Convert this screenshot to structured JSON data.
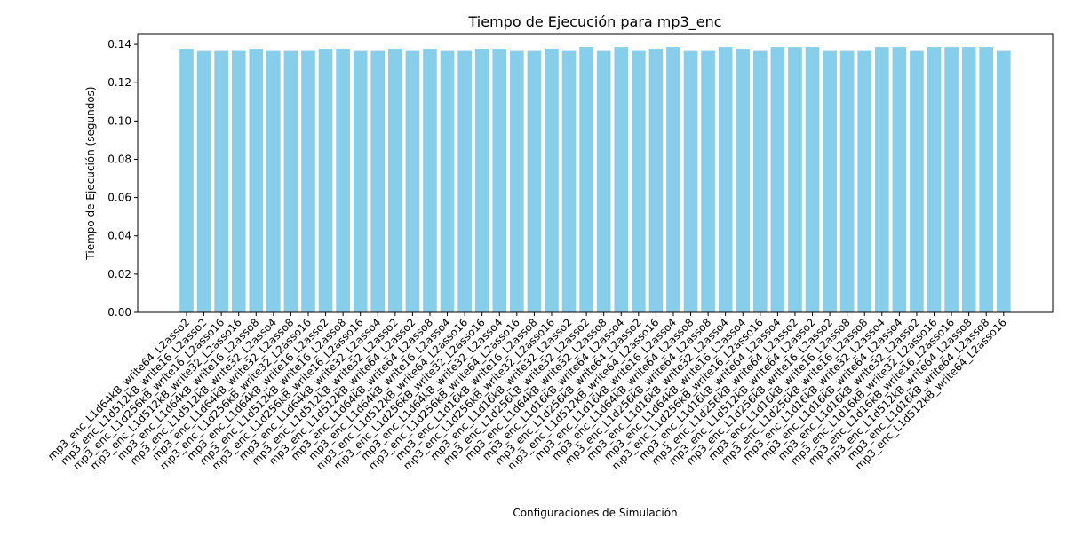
{
  "chart_data": {
    "type": "bar",
    "title": "Tiempo de Ejecución para mp3_enc",
    "xlabel": "Configuraciones de Simulación",
    "ylabel": "Tiempo de Ejecución (segundos)",
    "color": "#87ceeb",
    "ylim": [
      0,
      0.1456
    ],
    "yticks": [
      {
        "value": 0,
        "label": "0.00"
      },
      {
        "value": 0.02,
        "label": "0.02"
      },
      {
        "value": 0.04,
        "label": "0.04"
      },
      {
        "value": 0.06,
        "label": "0.06"
      },
      {
        "value": 0.08,
        "label": "0.08"
      },
      {
        "value": 0.1,
        "label": "0.10"
      },
      {
        "value": 0.12,
        "label": "0.12"
      },
      {
        "value": 0.14,
        "label": "0.14"
      }
    ],
    "categories": [
      "mp3_enc_L1d64kB_write64_L2asso2",
      "mp3_enc_L1d512kB_write16_L2asso2",
      "mp3_enc_L1d256kB_write16_L2asso16",
      "mp3_enc_L1d512kB_write32_L2asso16",
      "mp3_enc_L1d64kB_write16_L2asso8",
      "mp3_enc_L1d512kB_write32_L2asso4",
      "mp3_enc_L1d64kB_write32_L2asso8",
      "mp3_enc_L1d256kB_write32_L2asso16",
      "mp3_enc_L1d64kB_write16_L2asso2",
      "mp3_enc_L1d512kB_write16_L2asso8",
      "mp3_enc_L1d256kB_write16_L2asso16",
      "mp3_enc_L1d64kB_write32_L2asso4",
      "mp3_enc_L1d512kB_write32_L2asso2",
      "mp3_enc_L1d512kB_write64_L2asso2",
      "mp3_enc_L1d64kB_write64_L2asso8",
      "mp3_enc_L1d64kB_write16_L2asso4",
      "mp3_enc_L1d512kB_write64_L2asso16",
      "mp3_enc_L1d256kB_write32_L2asso16",
      "mp3_enc_L1d64kB_write32_L2asso4",
      "mp3_enc_L1d256kB_write64_L2asso16",
      "mp3_enc_L1d16kB_write16_L2asso8",
      "mp3_enc_L1d256kB_write32_L2asso16",
      "mp3_enc_L1d16kB_write32_L2asso2",
      "mp3_enc_L1d256kB_write32_L2asso2",
      "mp3_enc_L1d64kB_write32_L2asso8",
      "mp3_enc_L1d16kB_write64_L2asso4",
      "mp3_enc_L1d256kB_write64_L2asso2",
      "mp3_enc_L1d512kB_write64_L2asso16",
      "mp3_enc_L1d16kB_write16_L2asso4",
      "mp3_enc_L1d64kB_write64_L2asso8",
      "mp3_enc_L1d256kB_write64_L2asso8",
      "mp3_enc_L1d16kB_write32_L2asso4",
      "mp3_enc_L1d64kB_write16_L2asso4",
      "mp3_enc_L1d256kB_write16_L2asso16",
      "mp3_enc_L1d16kB_write64_L2asso4",
      "mp3_enc_L1d256kB_write64_L2asso2",
      "mp3_enc_L1d512kB_write64_L2asso2",
      "mp3_enc_L1d256kB_write16_L2asso2",
      "mp3_enc_L1d16kB_write16_L2asso8",
      "mp3_enc_L1d256kB_write16_L2asso8",
      "mp3_enc_L1d16kB_write32_L2asso4",
      "mp3_enc_L1d16kB_write64_L2asso4",
      "mp3_enc_L1d16kB_write32_L2asso2",
      "mp3_enc_L1d16kB_write32_L2asso16",
      "mp3_enc_L1d16kB_write16_L2asso16",
      "mp3_enc_L1d512kB_write64_L2asso8",
      "mp3_enc_L1d16kB_write64_L2asso8",
      "mp3_enc_L1d512kB_write64_L2asso16"
    ],
    "values": [
      0.1377,
      0.137,
      0.137,
      0.137,
      0.1377,
      0.137,
      0.137,
      0.137,
      0.1377,
      0.1377,
      0.137,
      0.137,
      0.1377,
      0.137,
      0.1377,
      0.137,
      0.137,
      0.1377,
      0.1377,
      0.137,
      0.137,
      0.1377,
      0.137,
      0.1386,
      0.137,
      0.1386,
      0.137,
      0.1377,
      0.1386,
      0.137,
      0.137,
      0.1386,
      0.1377,
      0.137,
      0.1386,
      0.1386,
      0.1386,
      0.137,
      0.137,
      0.137,
      0.1386,
      0.1386,
      0.137,
      0.1386,
      0.1386,
      0.1386,
      0.1386,
      0.137
    ]
  }
}
